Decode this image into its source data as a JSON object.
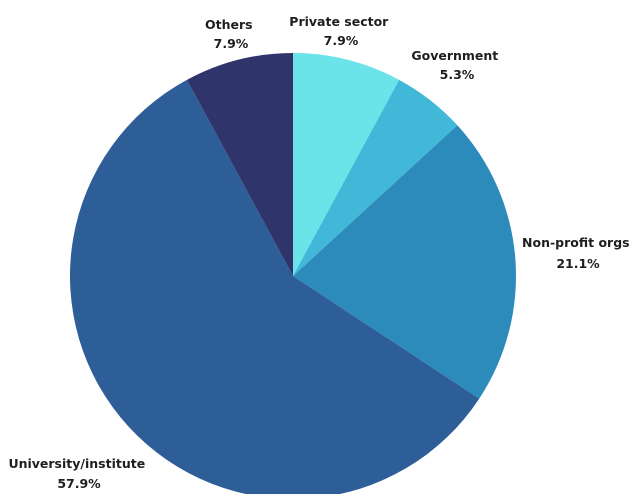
{
  "chart_data": {
    "type": "pie",
    "title": "",
    "start_angle_deg": 0,
    "direction": "clockwise",
    "slices": [
      {
        "label": "Private sector",
        "value": 7.9,
        "display": "7.9%",
        "color": "#6ae4e9"
      },
      {
        "label": "Government",
        "value": 5.3,
        "display": "5.3%",
        "color": "#42b8d8"
      },
      {
        "label": "Non-profit orgs",
        "value": 21.1,
        "display": "21.1%",
        "color": "#2d8bbb"
      },
      {
        "label": "University/institute",
        "value": 57.9,
        "display": "57.9%",
        "color": "#2e5e97"
      },
      {
        "label": "Others",
        "value": 7.9,
        "display": "7.9%",
        "color": "#2f356b"
      }
    ]
  }
}
